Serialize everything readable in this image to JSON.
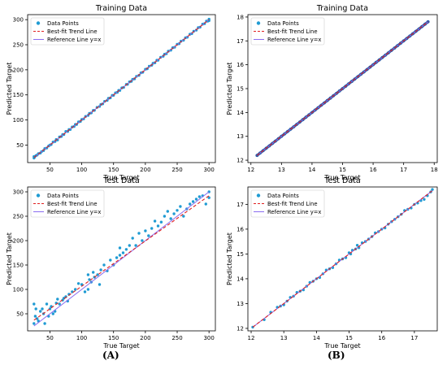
{
  "panel_labels": {
    "a": "(A)",
    "b": "(B)"
  },
  "legend": {
    "points": "Data Points",
    "trend": "Best-fit Trend Line",
    "reference": "Reference Line y=x"
  },
  "colors": {
    "points": "#1f9bd3",
    "points_dense": "#2a5caa",
    "trend": "#e02020",
    "reference": "#8a6cf0"
  },
  "chart_data": [
    {
      "type": "scatter",
      "title": "Training Data",
      "xlabel": "True Target",
      "ylabel": "Predicted Target",
      "xlim": [
        15,
        310
      ],
      "ylim": [
        15,
        310
      ],
      "xticks": [
        50,
        100,
        150,
        200,
        250,
        300
      ],
      "yticks": [
        50,
        100,
        150,
        200,
        250,
        300
      ],
      "legend_position": "upper-left",
      "grid": false,
      "series": [
        {
          "name": "Data Points",
          "x": [
            25,
            25,
            26,
            28,
            30,
            32,
            35,
            37,
            40,
            42,
            45,
            48,
            50,
            52,
            55,
            58,
            60,
            62,
            65,
            68,
            70,
            72,
            75,
            78,
            80,
            82,
            85,
            88,
            90,
            92,
            95,
            98,
            100,
            103,
            106,
            110,
            112,
            115,
            118,
            120,
            124,
            128,
            130,
            133,
            136,
            140,
            142,
            145,
            148,
            150,
            153,
            156,
            158,
            160,
            163,
            166,
            170,
            172,
            175,
            178,
            180,
            183,
            186,
            190,
            193,
            196,
            200,
            203,
            206,
            210,
            212,
            215,
            218,
            220,
            224,
            228,
            230,
            233,
            236,
            240,
            243,
            246,
            250,
            253,
            256,
            260,
            263,
            266,
            270,
            273,
            276,
            280,
            283,
            286,
            290,
            293,
            296,
            298,
            300,
            300
          ],
          "y": [
            24,
            27,
            26,
            29,
            30,
            33,
            34,
            37,
            39,
            43,
            44,
            48,
            50,
            51,
            56,
            57,
            61,
            60,
            66,
            67,
            71,
            71,
            77,
            77,
            81,
            81,
            86,
            87,
            91,
            91,
            96,
            97,
            101,
            102,
            107,
            109,
            113,
            114,
            119,
            119,
            125,
            127,
            131,
            132,
            137,
            139,
            143,
            144,
            149,
            149,
            154,
            155,
            159,
            159,
            164,
            165,
            171,
            171,
            176,
            177,
            181,
            182,
            187,
            189,
            194,
            195,
            201,
            202,
            207,
            209,
            213,
            214,
            219,
            219,
            225,
            227,
            231,
            232,
            237,
            239,
            244,
            245,
            251,
            252,
            257,
            259,
            264,
            265,
            271,
            272,
            277,
            279,
            284,
            285,
            291,
            292,
            297,
            297,
            301,
            298
          ]
        },
        {
          "name": "Best-fit Trend Line",
          "x": [
            25,
            300
          ],
          "y": [
            25,
            300
          ]
        },
        {
          "name": "Reference Line y=x",
          "x": [
            25,
            300
          ],
          "y": [
            25,
            300
          ]
        }
      ]
    },
    {
      "type": "scatter",
      "title": "Training Data",
      "xlabel": "True Target",
      "ylabel": "Predicted Target",
      "xlim": [
        11.9,
        18.1
      ],
      "ylim": [
        11.9,
        18.1
      ],
      "xticks": [
        12,
        13,
        14,
        15,
        16,
        17,
        18
      ],
      "yticks": [
        12,
        13,
        14,
        15,
        16,
        17,
        18
      ],
      "legend_position": "upper-left",
      "grid": false,
      "series": [
        {
          "name": "Data Points",
          "x": [
            12.2,
            12.3,
            12.4,
            12.5,
            12.6,
            12.7,
            12.8,
            12.9,
            13.0,
            13.1,
            13.2,
            13.3,
            13.4,
            13.5,
            13.6,
            13.7,
            13.8,
            13.9,
            14.0,
            14.1,
            14.2,
            14.3,
            14.4,
            14.5,
            14.6,
            14.7,
            14.8,
            14.9,
            15.0,
            15.1,
            15.2,
            15.3,
            15.4,
            15.5,
            15.6,
            15.7,
            15.8,
            15.9,
            16.0,
            16.1,
            16.2,
            16.3,
            16.4,
            16.5,
            16.6,
            16.7,
            16.8,
            16.9,
            17.0,
            17.1,
            17.2,
            17.3,
            17.4,
            17.5,
            17.6,
            17.7,
            17.8
          ],
          "y": [
            12.2,
            12.3,
            12.4,
            12.5,
            12.6,
            12.7,
            12.8,
            12.9,
            13.0,
            13.1,
            13.2,
            13.3,
            13.4,
            13.5,
            13.6,
            13.7,
            13.8,
            13.9,
            14.0,
            14.1,
            14.2,
            14.3,
            14.4,
            14.5,
            14.6,
            14.7,
            14.8,
            14.9,
            15.0,
            15.1,
            15.2,
            15.3,
            15.4,
            15.5,
            15.6,
            15.7,
            15.8,
            15.9,
            16.0,
            16.1,
            16.2,
            16.3,
            16.4,
            16.5,
            16.6,
            16.7,
            16.8,
            16.9,
            17.0,
            17.1,
            17.2,
            17.3,
            17.4,
            17.5,
            17.6,
            17.7,
            17.8
          ]
        },
        {
          "name": "Best-fit Trend Line",
          "x": [
            12.2,
            17.8
          ],
          "y": [
            12.2,
            17.8
          ]
        },
        {
          "name": "Reference Line y=x",
          "x": [
            12.2,
            17.8
          ],
          "y": [
            12.2,
            17.8
          ]
        }
      ]
    },
    {
      "type": "scatter",
      "title": "Test Data",
      "xlabel": "True Target",
      "ylabel": "Predicted Target",
      "xlim": [
        15,
        310
      ],
      "ylim": [
        15,
        310
      ],
      "xticks": [
        50,
        100,
        150,
        200,
        250,
        300
      ],
      "yticks": [
        50,
        100,
        150,
        200,
        250,
        300
      ],
      "legend_position": "upper-left",
      "grid": false,
      "series": [
        {
          "name": "Data Points",
          "x": [
            25,
            25,
            27,
            28,
            30,
            32,
            35,
            38,
            40,
            42,
            45,
            48,
            50,
            52,
            55,
            58,
            60,
            62,
            65,
            70,
            72,
            75,
            78,
            80,
            85,
            90,
            95,
            100,
            105,
            110,
            110,
            112,
            115,
            118,
            120,
            125,
            128,
            130,
            135,
            140,
            145,
            150,
            155,
            160,
            160,
            165,
            170,
            175,
            180,
            185,
            190,
            195,
            200,
            205,
            210,
            215,
            220,
            225,
            230,
            235,
            240,
            245,
            250,
            255,
            260,
            265,
            270,
            275,
            280,
            285,
            290,
            295,
            300,
            300
          ],
          "y": [
            30,
            70,
            45,
            60,
            40,
            35,
            55,
            60,
            50,
            30,
            70,
            45,
            60,
            65,
            50,
            55,
            72,
            80,
            70,
            78,
            82,
            85,
            76,
            90,
            95,
            100,
            112,
            110,
            95,
            130,
            100,
            120,
            115,
            135,
            125,
            130,
            110,
            140,
            150,
            138,
            160,
            150,
            165,
            170,
            185,
            175,
            182,
            190,
            205,
            190,
            215,
            200,
            220,
            210,
            225,
            240,
            230,
            238,
            250,
            260,
            245,
            255,
            262,
            270,
            250,
            265,
            275,
            280,
            285,
            290,
            292,
            275,
            288,
            300
          ]
        },
        {
          "name": "Best-fit Trend Line",
          "x": [
            25,
            300
          ],
          "y": [
            37,
            292
          ]
        },
        {
          "name": "Reference Line y=x",
          "x": [
            25,
            300
          ],
          "y": [
            25,
            300
          ]
        }
      ]
    },
    {
      "type": "scatter",
      "title": "Test Data",
      "xlabel": "True Target",
      "ylabel": "Predicted Target",
      "xlim": [
        11.9,
        17.7
      ],
      "ylim": [
        11.9,
        17.7
      ],
      "xticks": [
        12,
        13,
        14,
        15,
        16,
        17
      ],
      "yticks": [
        12,
        13,
        14,
        15,
        16,
        17
      ],
      "legend_position": "upper-left",
      "grid": false,
      "series": [
        {
          "name": "Data Points",
          "x": [
            12.05,
            12.4,
            12.6,
            12.8,
            12.9,
            13.0,
            13.1,
            13.2,
            13.3,
            13.4,
            13.5,
            13.6,
            13.7,
            13.8,
            13.9,
            14.0,
            14.1,
            14.2,
            14.3,
            14.4,
            14.5,
            14.6,
            14.7,
            14.8,
            14.9,
            15.0,
            15.05,
            15.1,
            15.2,
            15.25,
            15.3,
            15.4,
            15.5,
            15.6,
            15.7,
            15.8,
            15.9,
            16.0,
            16.1,
            16.2,
            16.3,
            16.4,
            16.5,
            16.6,
            16.7,
            16.8,
            16.9,
            17.0,
            17.1,
            17.2,
            17.3,
            17.4,
            17.5,
            17.55
          ],
          "y": [
            12.05,
            12.35,
            12.65,
            12.85,
            12.9,
            12.95,
            13.1,
            13.25,
            13.3,
            13.45,
            13.5,
            13.55,
            13.7,
            13.85,
            13.9,
            14.0,
            14.05,
            14.2,
            14.35,
            14.4,
            14.45,
            14.6,
            14.75,
            14.8,
            14.85,
            15.05,
            15.0,
            15.15,
            15.2,
            15.35,
            15.25,
            15.45,
            15.5,
            15.6,
            15.7,
            15.85,
            15.9,
            16.0,
            16.05,
            16.2,
            16.3,
            16.4,
            16.5,
            16.6,
            16.75,
            16.8,
            16.85,
            17.0,
            17.05,
            17.15,
            17.2,
            17.35,
            17.5,
            17.6
          ]
        },
        {
          "name": "Best-fit Trend Line",
          "x": [
            12.05,
            17.55
          ],
          "y": [
            12.05,
            17.55
          ]
        },
        {
          "name": "Reference Line y=x",
          "x": [
            12.05,
            17.55
          ],
          "y": [
            12.05,
            17.55
          ]
        }
      ]
    }
  ]
}
